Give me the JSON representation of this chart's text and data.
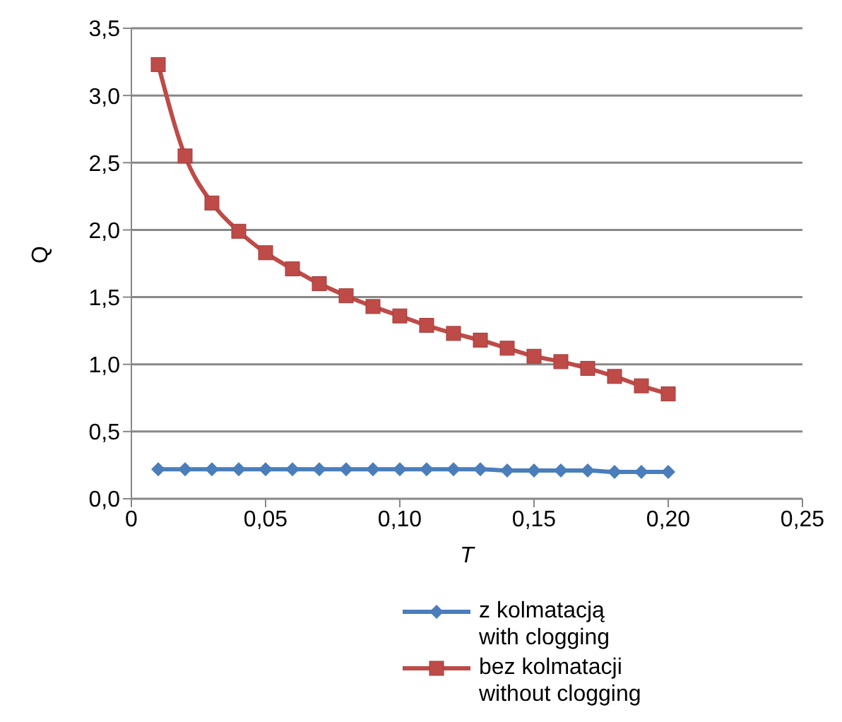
{
  "chart_data": {
    "type": "line",
    "xlabel": "T",
    "ylabel": "Q",
    "x": [
      0.01,
      0.02,
      0.03,
      0.04,
      0.05,
      0.06,
      0.07,
      0.08,
      0.09,
      0.1,
      0.11,
      0.12,
      0.13,
      0.14,
      0.15,
      0.16,
      0.17,
      0.18,
      0.19,
      0.2
    ],
    "series": [
      {
        "name": "z kolmatacją\nwith clogging",
        "color": "#4a7ebb",
        "marker": "diamond",
        "values": [
          0.22,
          0.22,
          0.22,
          0.22,
          0.22,
          0.22,
          0.22,
          0.22,
          0.22,
          0.22,
          0.22,
          0.22,
          0.22,
          0.21,
          0.21,
          0.21,
          0.21,
          0.2,
          0.2,
          0.2
        ]
      },
      {
        "name": "bez kolmatacji\nwithout clogging",
        "color": "#be4b48",
        "marker": "square",
        "values": [
          3.23,
          2.55,
          2.2,
          1.99,
          1.83,
          1.71,
          1.6,
          1.51,
          1.43,
          1.36,
          1.29,
          1.23,
          1.18,
          1.12,
          1.06,
          1.02,
          0.97,
          0.91,
          0.84,
          0.78
        ]
      }
    ],
    "xlim": [
      0,
      0.25
    ],
    "xticks": [
      0,
      {
        "value": 0.05,
        "label": "0,05"
      },
      {
        "value": 0.1,
        "label": "0,10"
      },
      {
        "value": 0.15,
        "label": "0,15"
      },
      {
        "value": 0.2,
        "label": "0,20"
      },
      {
        "value": 0.25,
        "label": "0,25"
      }
    ],
    "ylim": [
      0,
      3.5
    ],
    "yticks": [
      {
        "value": 0,
        "label": "0,0"
      },
      {
        "value": 0.5,
        "label": "0,5"
      },
      {
        "value": 1,
        "label": "1,0"
      },
      {
        "value": 1.5,
        "label": "1,5"
      },
      {
        "value": 2,
        "label": "2,0"
      },
      {
        "value": 2.5,
        "label": "2,5"
      },
      {
        "value": 3,
        "label": "3,0"
      },
      {
        "value": 3.5,
        "label": "3,5"
      }
    ],
    "grid": "y",
    "legend": "bottom"
  }
}
